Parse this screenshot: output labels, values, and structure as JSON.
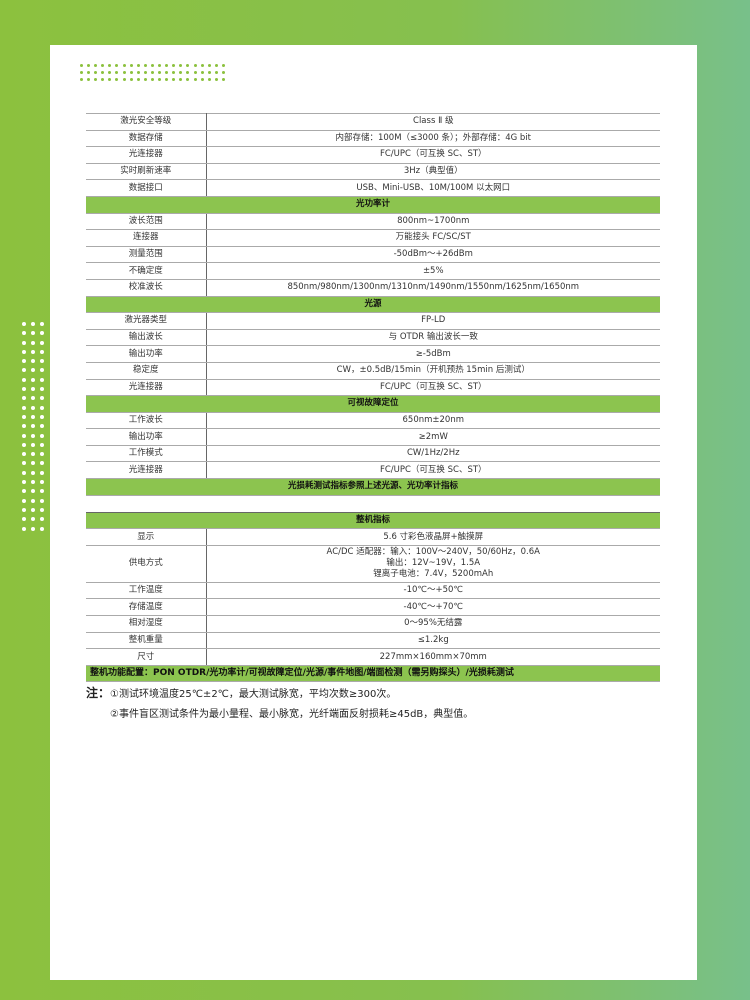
{
  "specs_top": [
    {
      "label": "激光安全等级",
      "value": "Class Ⅱ 级"
    },
    {
      "label": "数据存储",
      "value": "内部存储：100M（≤3000 条）；外部存储：4G bit"
    },
    {
      "label": "光连接器",
      "value": "FC/UPC（可互换 SC、ST）"
    },
    {
      "label": "实时刷新速率",
      "value": "3Hz（典型值）"
    },
    {
      "label": "数据接口",
      "value": "USB、Mini-USB、10M/100M 以太网口"
    }
  ],
  "power_meter": {
    "title": "光功率计",
    "rows": [
      {
        "label": "波长范围",
        "value": "800nm~1700nm"
      },
      {
        "label": "连接器",
        "value": "万能接头 FC/SC/ST"
      },
      {
        "label": "测量范围",
        "value": "-50dBm～+26dBm"
      },
      {
        "label": "不确定度",
        "value": "±5%"
      },
      {
        "label": "校准波长",
        "value": "850nm/980nm/1300nm/1310nm/1490nm/1550nm/1625nm/1650nm"
      }
    ]
  },
  "light_source": {
    "title": "光源",
    "rows": [
      {
        "label": "激光器类型",
        "value": "FP-LD"
      },
      {
        "label": "输出波长",
        "value": "与 OTDR 输出波长一致"
      },
      {
        "label": "输出功率",
        "value": "≥-5dBm"
      },
      {
        "label": "稳定度",
        "value": "CW，±0.5dB/15min（开机预热 15min 后测试）"
      },
      {
        "label": "光连接器",
        "value": "FC/UPC（可互换 SC、ST）"
      }
    ]
  },
  "vfl": {
    "title": "可视故障定位",
    "rows": [
      {
        "label": "工作波长",
        "value": "650nm±20nm"
      },
      {
        "label": "输出功率",
        "value": "≥2mW"
      },
      {
        "label": "工作模式",
        "value": "CW/1Hz/2Hz"
      },
      {
        "label": "光连接器",
        "value": "FC/UPC（可互换 SC、ST）"
      }
    ]
  },
  "loss_note": "光损耗测试指标参照上述光源、光功率计指标",
  "general": {
    "title": "整机指标",
    "display": {
      "label": "显示",
      "value": "5.6 寸彩色液晶屏+触摸屏"
    },
    "power_supply": {
      "label": "供电方式",
      "lines": [
        "AC/DC 适配器：输入：100V～240V，50/60Hz，0.6A",
        "输出：12V~19V，1.5A",
        "锂离子电池：7.4V，5200mAh"
      ]
    },
    "rows": [
      {
        "label": "工作温度",
        "value": "-10℃～+50℃"
      },
      {
        "label": "存储温度",
        "value": "-40℃～+70℃"
      },
      {
        "label": "相对湿度",
        "value": "0～95%无结露"
      },
      {
        "label": "整机重量",
        "value": "≤1.2kg"
      },
      {
        "label": "尺寸",
        "value": "227mm×160mm×70mm"
      }
    ]
  },
  "functions": "整机功能配置：PON OTDR/光功率计/可视故障定位/光源/事件地图/端面检测（需另购探头）/光损耗测试",
  "notes": {
    "prefix": "注：",
    "items": [
      "①测试环境温度25℃±2℃，最大测试脉宽，平均次数≥300次。",
      "②事件盲区测试条件为最小量程、最小脉宽，光纤端面反射损耗≥45dB，典型值。"
    ]
  },
  "colors": {
    "accent": "#8cc44f",
    "background": "#8cc13e"
  }
}
